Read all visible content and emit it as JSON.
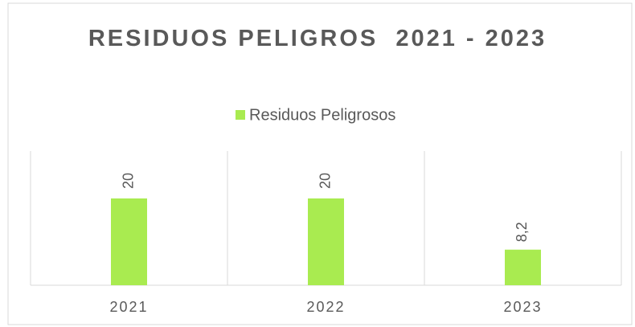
{
  "chart_data": {
    "type": "bar",
    "title": "RESIDUOS PELIGROS  2021 - 2023",
    "legend": "top",
    "series": [
      {
        "name": "Residuos Peligrosos",
        "color": "#a9eb50",
        "values": [
          20,
          20,
          8.2
        ],
        "value_labels": [
          "20",
          "20",
          "8,2"
        ]
      }
    ],
    "categories": [
      "2021",
      "2022",
      "2023"
    ]
  }
}
